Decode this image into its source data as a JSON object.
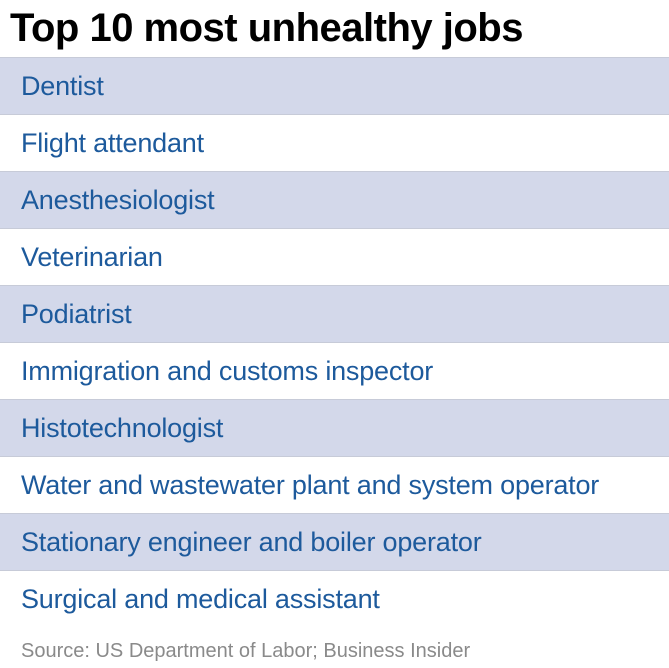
{
  "chart_data": {
    "type": "table",
    "title": "Top 10 most unhealthy jobs",
    "rows": [
      "Dentist",
      "Flight attendant",
      "Anesthesiologist",
      "Veterinarian",
      "Podiatrist",
      "Immigration and customs inspector",
      "Histotechnologist",
      "Water and wastewater plant and system operator",
      "Stationary engineer and boiler operator",
      "Surgical and medical assistant"
    ],
    "source": "Source: US Department of Labor; Business Insider"
  },
  "colors": {
    "row_shaded": "#d3d8ea",
    "row_plain": "#ffffff",
    "row_text": "#1d5a9c",
    "source_text": "#8a8a8a"
  }
}
